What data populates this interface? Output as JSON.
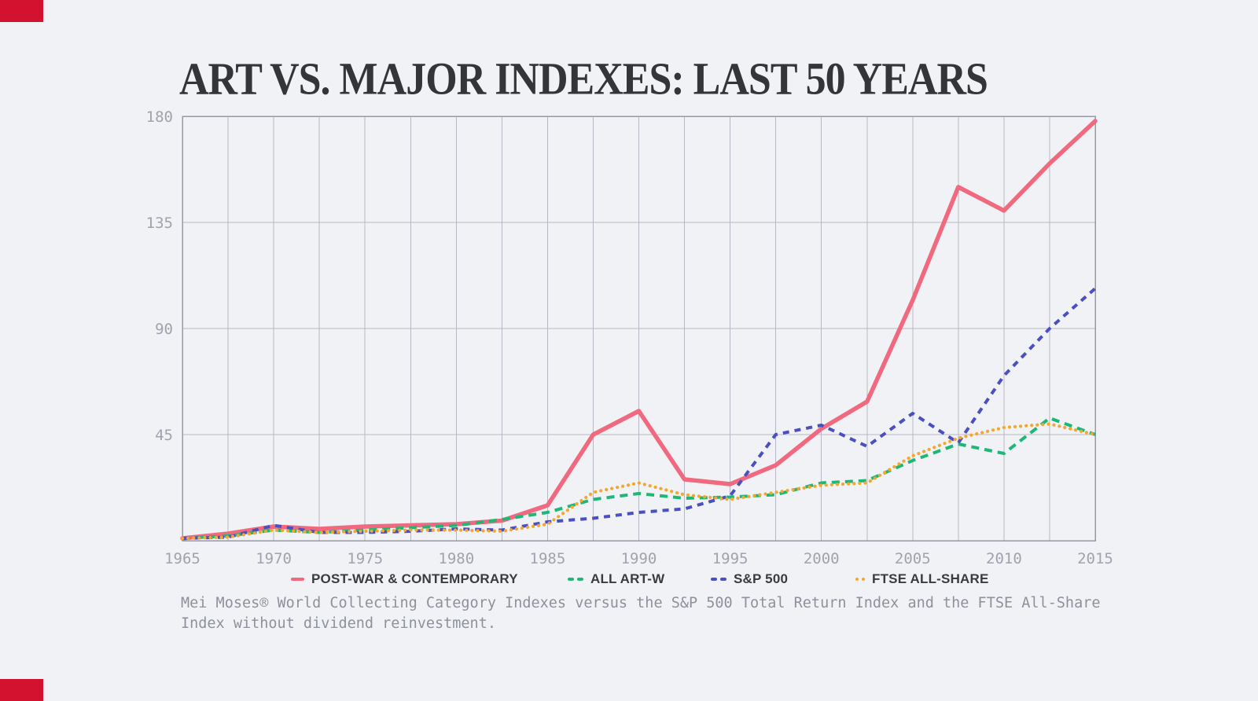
{
  "page": {
    "background": "#f1f2f6",
    "brand_color": "#d2122e",
    "grid_color": "#b6b9c3",
    "frame_color": "#9599a4",
    "title_color": "#343539",
    "axis_label_color": "#a0a3ad",
    "legend_text_color": "#3a3b3f",
    "caption_color": "#8d919b"
  },
  "header": {
    "title": "ART VS. MAJOR INDEXES: LAST 50 YEARS"
  },
  "chart_data": {
    "type": "line",
    "title": "ART VS. MAJOR INDEXES: LAST 50 YEARS",
    "xlabel": "",
    "ylabel": "",
    "xlim": [
      1965,
      2015
    ],
    "ylim": [
      0,
      180
    ],
    "grid": true,
    "grid_x_interval_years": 2.5,
    "legend_position": "bottom",
    "x": [
      1965,
      1967.5,
      1970,
      1972.5,
      1975,
      1977.5,
      1980,
      1982.5,
      1985,
      1987.5,
      1990,
      1992.5,
      1995,
      1997.5,
      2000,
      2002.5,
      2005,
      2007.5,
      2010,
      2012.5,
      2015
    ],
    "xtick_labels": [
      "1965",
      "1970",
      "1975",
      "1980",
      "1985",
      "1990",
      "1995",
      "2000",
      "2005",
      "2010",
      "2015"
    ],
    "ytick_values": [
      180,
      135,
      90,
      45
    ],
    "ytick_labels": [
      "180",
      "135",
      "90",
      "45"
    ],
    "series": [
      {
        "name": "POST-WAR & CONTEMPORARY",
        "color": "#f0697f",
        "style": "solid",
        "values": [
          1,
          3,
          6,
          5,
          6,
          6.5,
          7,
          8.5,
          15,
          45,
          55,
          26,
          24,
          32,
          47.5,
          59,
          102,
          150,
          140,
          160,
          178
        ]
      },
      {
        "name": "ALL ART-W",
        "color": "#1eb876",
        "style": "dashed",
        "values": [
          1,
          2,
          4.5,
          3.5,
          4.5,
          5.5,
          6.5,
          9,
          12,
          17.5,
          20,
          18,
          18.5,
          19.5,
          24.5,
          25.5,
          34,
          41,
          37,
          52,
          45
        ]
      },
      {
        "name": "S&P 500",
        "color": "#4b50c0",
        "style": "dashed",
        "values": [
          1,
          1.5,
          6.5,
          3.5,
          3.5,
          4,
          5,
          4.5,
          8,
          9.5,
          12,
          13.5,
          19,
          45,
          49,
          40,
          54,
          41.5,
          70,
          90,
          107
        ]
      },
      {
        "name": "FTSE ALL-SHARE",
        "color": "#f4a72e",
        "style": "dotted",
        "values": [
          1,
          1.5,
          4.5,
          3.5,
          4,
          4.5,
          4.5,
          4,
          7,
          20.5,
          24.5,
          19.5,
          17.5,
          20.5,
          23.5,
          24.5,
          36,
          43.5,
          48,
          49.5,
          45
        ]
      }
    ]
  },
  "caption": {
    "line1": "Mei Moses® World Collecting Category Indexes versus the S&P 500 Total Return Index and the FTSE All-Share",
    "line2": "Index without dividend reinvestment."
  }
}
